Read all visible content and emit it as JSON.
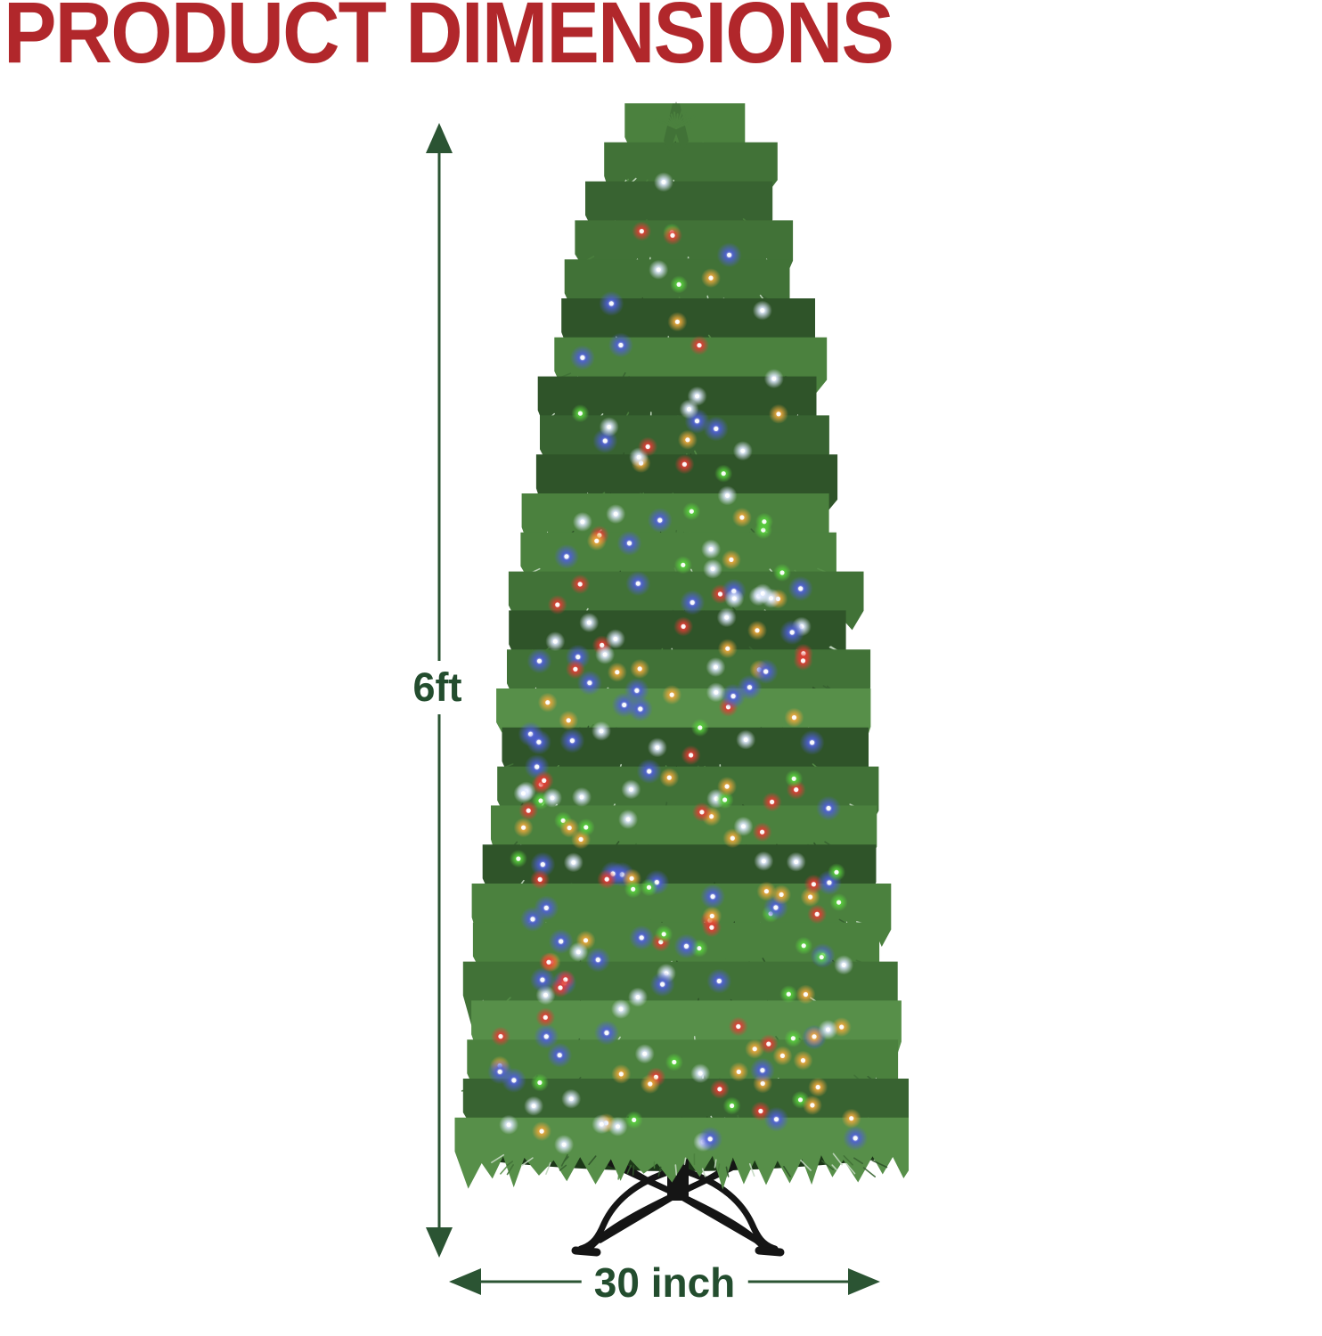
{
  "title": {
    "text": "PRODUCT DIMENSIONS",
    "color": "#B1272B"
  },
  "dimensions": {
    "height_label": "6ft",
    "width_label": "30 inch",
    "arrow_color": "#2B5433",
    "label_color": "#234D2E"
  },
  "tree": {
    "description": "Pre-lit slim pencil artificial Christmas tree with multicolor lights on a black folding metal stand",
    "foliage_colors": [
      "#2F5429",
      "#386331",
      "#417237",
      "#4B813E",
      "#578F49"
    ],
    "frost_color": "#C3D8C0",
    "inner_color": "#1C3718",
    "stand_color": "#151515",
    "light_colors": [
      {
        "name": "blue",
        "hex": "#4F5FD8",
        "weight": 0.27,
        "r": 14
      },
      {
        "name": "amber",
        "hex": "#EAA73C",
        "weight": 0.21,
        "r": 11
      },
      {
        "name": "red",
        "hex": "#E03C34",
        "weight": 0.18,
        "r": 11
      },
      {
        "name": "white",
        "hex": "#DFE9FF",
        "weight": 0.18,
        "r": 11
      },
      {
        "name": "green",
        "hex": "#5AD23E",
        "weight": 0.16,
        "r": 10
      }
    ],
    "light_count": 235
  }
}
